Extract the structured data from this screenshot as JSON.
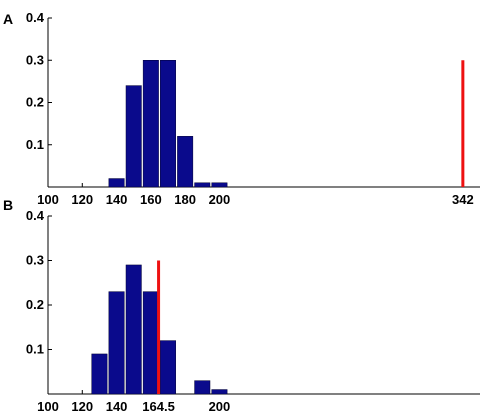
{
  "chart_data": [
    {
      "type": "bar",
      "panel_label": "A",
      "title": "",
      "xlabel": "",
      "ylabel": "",
      "xlim": [
        100,
        352
      ],
      "ylim": [
        0,
        0.4
      ],
      "yticks": [
        0.1,
        0.2,
        0.3,
        0.4
      ],
      "ytick_labels": [
        "0.1",
        "0.2",
        "0.3",
        "0.4"
      ],
      "xticks": [
        100,
        120,
        140,
        160,
        180,
        200,
        342
      ],
      "xtick_labels": [
        "100",
        "120",
        "140",
        "160",
        "180",
        "200",
        "342"
      ],
      "bar_width": 9,
      "bar_color": "#0a0a8c",
      "x": [
        140,
        150,
        160,
        170,
        180,
        190,
        200
      ],
      "values": [
        0.02,
        0.24,
        0.3,
        0.3,
        0.12,
        0.01,
        0.01
      ],
      "marker": {
        "x": 342,
        "height": 0.3,
        "color": "#ee1111"
      },
      "grid": false
    },
    {
      "type": "bar",
      "panel_label": "B",
      "title": "",
      "xlabel": "",
      "ylabel": "",
      "xlim": [
        100,
        352
      ],
      "ylim": [
        0,
        0.4
      ],
      "yticks": [
        0.1,
        0.2,
        0.3,
        0.4
      ],
      "ytick_labels": [
        "0.1",
        "0.2",
        "0.3",
        "0.4"
      ],
      "xticks": [
        100,
        120,
        140,
        164.5,
        200
      ],
      "xtick_labels": [
        "100",
        "120",
        "140",
        "164.5",
        "200"
      ],
      "bar_width": 9,
      "bar_color": "#0a0a8c",
      "x": [
        130,
        140,
        150,
        160,
        170,
        180,
        190,
        200
      ],
      "values": [
        0.09,
        0.23,
        0.29,
        0.23,
        0.12,
        0.0,
        0.03,
        0.01
      ],
      "marker": {
        "x": 164.5,
        "height": 0.3,
        "color": "#ee1111"
      },
      "grid": false
    }
  ]
}
